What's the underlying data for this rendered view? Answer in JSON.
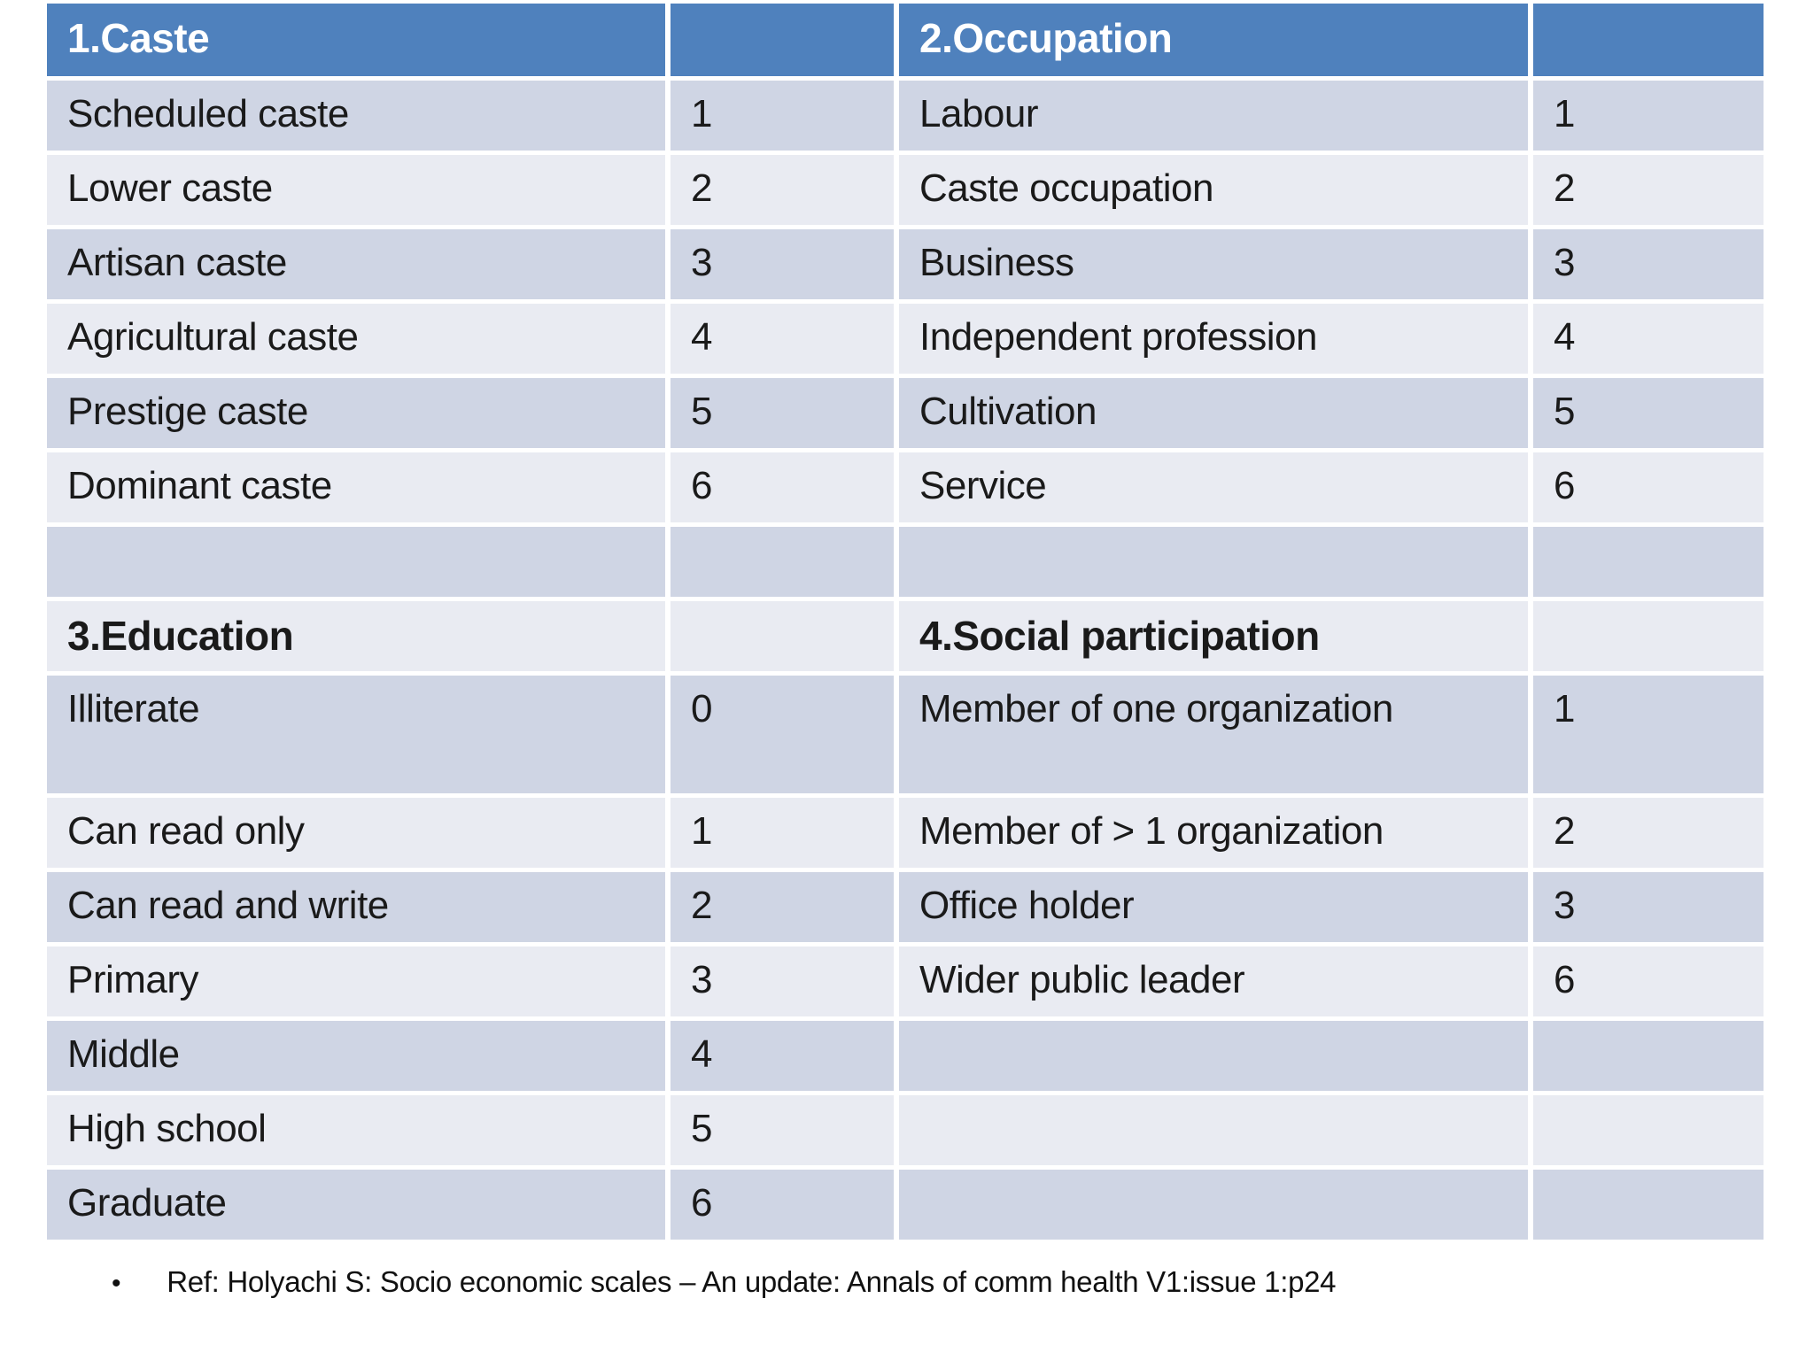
{
  "table": {
    "header": [
      {
        "label": "1.Caste"
      },
      {
        "label": ""
      },
      {
        "label": "2.Occupation"
      },
      {
        "label": ""
      }
    ],
    "rows": [
      {
        "cells": [
          "Scheduled caste",
          "1",
          "Labour",
          "1"
        ]
      },
      {
        "cells": [
          "Lower caste",
          "2",
          "Caste occupation",
          "2"
        ]
      },
      {
        "cells": [
          "Artisan caste",
          "3",
          "Business",
          "3"
        ]
      },
      {
        "cells": [
          "Agricultural caste",
          "4",
          "Independent profession",
          "4"
        ]
      },
      {
        "cells": [
          "Prestige caste",
          "5",
          "Cultivation",
          "5"
        ]
      },
      {
        "cells": [
          "Dominant caste",
          "6",
          "Service",
          "6"
        ]
      },
      {
        "cells": [
          "",
          "",
          "",
          ""
        ],
        "empty": true
      },
      {
        "cells": [
          "3.Education",
          "",
          "4.Social participation",
          ""
        ],
        "section": true
      },
      {
        "cells": [
          "Illiterate",
          "0",
          "Member of one organization",
          "1"
        ],
        "tall": true
      },
      {
        "cells": [
          "Can read only",
          "1",
          "Member of > 1 organization",
          "2"
        ]
      },
      {
        "cells": [
          "Can read and write",
          "2",
          "Office holder",
          "3"
        ]
      },
      {
        "cells": [
          "Primary",
          "3",
          "Wider public leader",
          "6"
        ]
      },
      {
        "cells": [
          "Middle",
          "4",
          "",
          ""
        ]
      },
      {
        "cells": [
          "High school",
          "5",
          "",
          ""
        ]
      },
      {
        "cells": [
          "Graduate",
          "6",
          "",
          ""
        ]
      }
    ]
  },
  "footer": {
    "bullet": "•",
    "text": "Ref: Holyachi S: Socio economic scales – An update: Annals of comm health V1:issue 1:p24"
  },
  "colors": {
    "header_bg": "#4f81bd",
    "band_dark": "#cfd5e4",
    "band_light": "#e9ebf2",
    "header_text": "#ffffff",
    "body_text": "#1a1a1a"
  }
}
